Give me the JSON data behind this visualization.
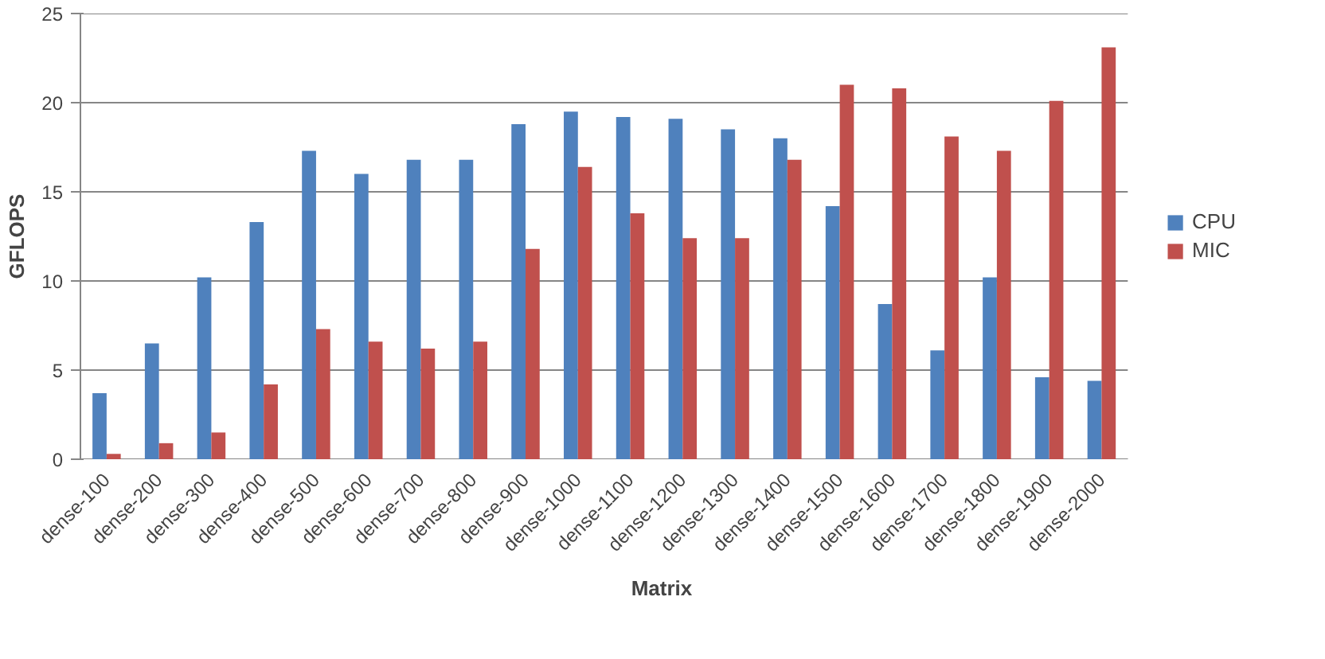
{
  "chart_data": {
    "type": "bar",
    "xlabel": "Matrix",
    "ylabel": "GFLOPS",
    "categories": [
      "dense-100",
      "dense-200",
      "dense-300",
      "dense-400",
      "dense-500",
      "dense-600",
      "dense-700",
      "dense-800",
      "dense-900",
      "dense-1000",
      "dense-1100",
      "dense-1200",
      "dense-1300",
      "dense-1400",
      "dense-1500",
      "dense-1600",
      "dense-1700",
      "dense-1800",
      "dense-1900",
      "dense-2000"
    ],
    "series": [
      {
        "name": "CPU",
        "color": "#4f81bd",
        "values": [
          3.7,
          6.5,
          10.2,
          13.3,
          17.3,
          16.0,
          16.8,
          16.8,
          18.8,
          19.5,
          19.2,
          19.1,
          18.5,
          18.0,
          14.2,
          8.7,
          6.1,
          10.2,
          4.6,
          4.4
        ]
      },
      {
        "name": "MIC",
        "color": "#c0504d",
        "values": [
          0.3,
          0.9,
          1.5,
          4.2,
          7.3,
          6.6,
          6.2,
          6.6,
          11.8,
          16.4,
          13.8,
          12.4,
          12.4,
          16.8,
          21.0,
          20.8,
          18.1,
          17.3,
          20.1,
          23.1
        ]
      }
    ],
    "ylim": [
      0,
      25
    ],
    "yticks": [
      0,
      5,
      10,
      15,
      20,
      25
    ],
    "grid": "y",
    "legend": "right"
  }
}
